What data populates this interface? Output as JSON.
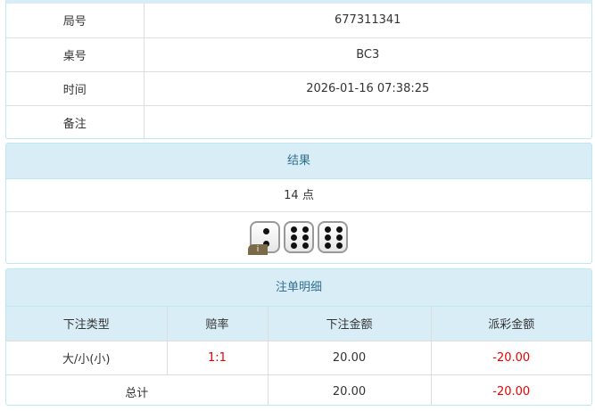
{
  "info": {
    "rows": [
      {
        "label": "局号",
        "value": "677311341"
      },
      {
        "label": "桌号",
        "value": "BC3"
      },
      {
        "label": "时间",
        "value": "2026-01-16 07:38:25"
      },
      {
        "label": "备注",
        "value": ""
      }
    ]
  },
  "result": {
    "title": "结果",
    "points": "14 点",
    "dice": [
      2,
      6,
      6
    ],
    "badge": "i"
  },
  "bets": {
    "title": "注单明细",
    "headers": [
      "下注类型",
      "赔率",
      "下注金额",
      "派彩金额"
    ],
    "rows": [
      {
        "type": "大/小(小)",
        "odds": "1:1",
        "amount": "20.00",
        "payout": "-20.00"
      }
    ],
    "total": {
      "label": "总计",
      "amount": "20.00",
      "payout": "-20.00"
    }
  },
  "colors": {
    "header_bg": "#d9edf7",
    "header_text": "#31708f",
    "negative": "#ee0000"
  }
}
